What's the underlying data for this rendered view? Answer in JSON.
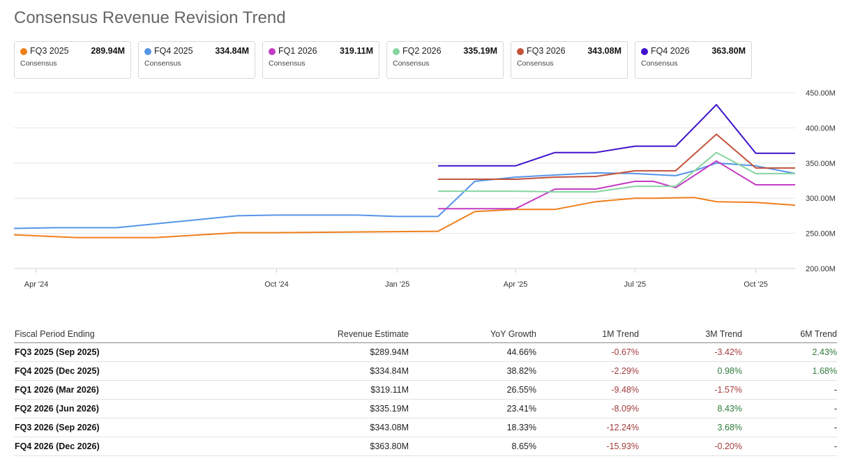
{
  "title": "Consensus Revenue Revision Trend",
  "cards": [
    {
      "name": "FQ3 2025",
      "value": "289.94M",
      "sub": "Consensus",
      "color": "#ef7f1a"
    },
    {
      "name": "FQ4 2025",
      "value": "334.84M",
      "sub": "Consensus",
      "color": "#5595e8"
    },
    {
      "name": "FQ1 2026",
      "value": "319.11M",
      "sub": "Consensus",
      "color": "#c43bc4"
    },
    {
      "name": "FQ2 2026",
      "value": "335.19M",
      "sub": "Consensus",
      "color": "#86d4a0"
    },
    {
      "name": "FQ3 2026",
      "value": "343.08M",
      "sub": "Consensus",
      "color": "#c2523a"
    },
    {
      "name": "FQ4 2026",
      "value": "363.80M",
      "sub": "Consensus",
      "color": "#3f12cc"
    }
  ],
  "chart_data": {
    "type": "line",
    "x_axis": {
      "type": "date",
      "range": [
        "2024-03-15",
        "2025-10-31"
      ],
      "ticks": [
        [
          "2024-04-01",
          "Apr '24"
        ],
        [
          "2024-10-01",
          "Oct '24"
        ],
        [
          "2025-01-01",
          "Jan '25"
        ],
        [
          "2025-04-01",
          "Apr '25"
        ],
        [
          "2025-07-01",
          "Jul '25"
        ],
        [
          "2025-10-01",
          "Oct '25"
        ]
      ]
    },
    "y_axis": {
      "range": [
        200,
        450
      ],
      "ticks": [
        [
          "200",
          "200.00M"
        ],
        [
          "250",
          "250.00M"
        ],
        [
          "300",
          "300.00M"
        ],
        [
          "350",
          "350.00M"
        ],
        [
          "400",
          "400.00M"
        ],
        [
          "450",
          "450.00M"
        ]
      ],
      "position": "right"
    },
    "grid": "horizontal",
    "series": [
      {
        "name": "FQ3 2025",
        "color": "#ef7f1a",
        "points": [
          [
            "2024-03-15",
            248
          ],
          [
            "2024-05-01",
            244
          ],
          [
            "2024-07-01",
            244
          ],
          [
            "2024-09-01",
            251
          ],
          [
            "2024-10-01",
            251
          ],
          [
            "2025-02-01",
            253
          ],
          [
            "2025-03-01",
            281
          ],
          [
            "2025-04-01",
            284
          ],
          [
            "2025-05-01",
            284
          ],
          [
            "2025-06-01",
            295
          ],
          [
            "2025-07-01",
            300
          ],
          [
            "2025-07-15",
            300
          ],
          [
            "2025-08-15",
            301
          ],
          [
            "2025-09-01",
            295
          ],
          [
            "2025-10-01",
            294
          ],
          [
            "2025-10-31",
            290
          ]
        ]
      },
      {
        "name": "FQ4 2025",
        "color": "#5595e8",
        "points": [
          [
            "2024-03-15",
            257
          ],
          [
            "2024-04-15",
            258
          ],
          [
            "2024-06-01",
            258
          ],
          [
            "2024-09-01",
            275
          ],
          [
            "2024-10-01",
            276
          ],
          [
            "2024-12-01",
            276
          ],
          [
            "2025-01-01",
            274
          ],
          [
            "2025-02-01",
            274
          ],
          [
            "2025-03-01",
            324
          ],
          [
            "2025-04-01",
            330
          ],
          [
            "2025-06-01",
            336
          ],
          [
            "2025-07-01",
            335
          ],
          [
            "2025-08-01",
            332
          ],
          [
            "2025-08-15",
            339
          ],
          [
            "2025-09-01",
            350
          ],
          [
            "2025-10-01",
            346
          ],
          [
            "2025-10-31",
            335
          ]
        ]
      },
      {
        "name": "FQ1 2026",
        "color": "#c43bc4",
        "points": [
          [
            "2025-02-01",
            285
          ],
          [
            "2025-04-01",
            285
          ],
          [
            "2025-05-01",
            313
          ],
          [
            "2025-06-01",
            313
          ],
          [
            "2025-07-01",
            324
          ],
          [
            "2025-07-15",
            324
          ],
          [
            "2025-08-01",
            315
          ],
          [
            "2025-09-01",
            353
          ],
          [
            "2025-10-01",
            319
          ],
          [
            "2025-10-31",
            319
          ]
        ]
      },
      {
        "name": "FQ2 2026",
        "color": "#86d4a0",
        "points": [
          [
            "2025-02-01",
            310
          ],
          [
            "2025-04-01",
            310
          ],
          [
            "2025-05-01",
            309
          ],
          [
            "2025-06-01",
            309
          ],
          [
            "2025-07-01",
            317
          ],
          [
            "2025-07-15",
            317
          ],
          [
            "2025-08-01",
            317
          ],
          [
            "2025-09-01",
            365
          ],
          [
            "2025-10-01",
            335
          ],
          [
            "2025-10-31",
            335
          ]
        ]
      },
      {
        "name": "FQ3 2026",
        "color": "#c2523a",
        "points": [
          [
            "2025-02-01",
            327
          ],
          [
            "2025-04-01",
            327
          ],
          [
            "2025-05-01",
            330
          ],
          [
            "2025-06-01",
            331
          ],
          [
            "2025-07-01",
            339
          ],
          [
            "2025-07-15",
            339
          ],
          [
            "2025-08-01",
            339
          ],
          [
            "2025-09-01",
            391
          ],
          [
            "2025-10-01",
            343
          ],
          [
            "2025-10-31",
            343
          ]
        ]
      },
      {
        "name": "FQ4 2026",
        "color": "#3f12cc",
        "points": [
          [
            "2025-02-01",
            346
          ],
          [
            "2025-04-01",
            346
          ],
          [
            "2025-05-01",
            365
          ],
          [
            "2025-06-01",
            365
          ],
          [
            "2025-07-01",
            374
          ],
          [
            "2025-07-15",
            374
          ],
          [
            "2025-08-01",
            374
          ],
          [
            "2025-09-01",
            433
          ],
          [
            "2025-10-01",
            364
          ],
          [
            "2025-10-31",
            364
          ]
        ]
      }
    ]
  },
  "table": {
    "headers": [
      "Fiscal Period Ending",
      "Revenue Estimate",
      "YoY Growth",
      "1M Trend",
      "3M Trend",
      "6M Trend"
    ],
    "rows": [
      {
        "period": "FQ3 2025 (Sep 2025)",
        "estimate": "$289.94M",
        "yoy": "44.66%",
        "m1": "-0.67%",
        "m3": "-3.42%",
        "m6": "2.43%"
      },
      {
        "period": "FQ4 2025 (Dec 2025)",
        "estimate": "$334.84M",
        "yoy": "38.82%",
        "m1": "-2.29%",
        "m3": "0.98%",
        "m6": "1.68%"
      },
      {
        "period": "FQ1 2026 (Mar 2026)",
        "estimate": "$319.11M",
        "yoy": "26.55%",
        "m1": "-9.48%",
        "m3": "-1.57%",
        "m6": "-"
      },
      {
        "period": "FQ2 2026 (Jun 2026)",
        "estimate": "$335.19M",
        "yoy": "23.41%",
        "m1": "-8.09%",
        "m3": "8.43%",
        "m6": "-"
      },
      {
        "period": "FQ3 2026 (Sep 2026)",
        "estimate": "$343.08M",
        "yoy": "18.33%",
        "m1": "-12.24%",
        "m3": "3.68%",
        "m6": "-"
      },
      {
        "period": "FQ4 2026 (Dec 2026)",
        "estimate": "$363.80M",
        "yoy": "8.65%",
        "m1": "-15.93%",
        "m3": "-0.20%",
        "m6": "-"
      }
    ]
  }
}
